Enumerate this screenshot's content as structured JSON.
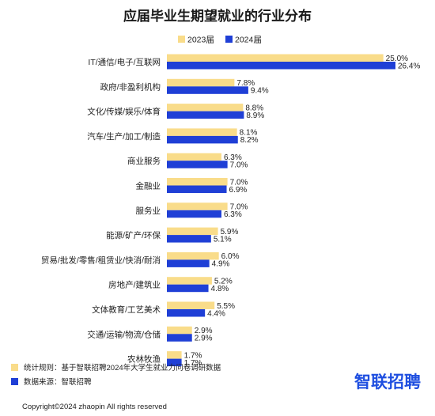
{
  "chart_data": {
    "type": "bar",
    "orientation": "horizontal",
    "title": "应届毕业生期望就业的行业分布",
    "categories": [
      "IT/通信/电子/互联网",
      "政府/非盈利机构",
      "文化/传媒/娱乐/体育",
      "汽车/生产/加工/制造",
      "商业服务",
      "金融业",
      "服务业",
      "能源/矿产/环保",
      "贸易/批发/零售/租赁业/快消/耐消",
      "房地产/建筑业",
      "文体教育/工艺美术",
      "交通/运输/物流/仓储",
      "农林牧渔"
    ],
    "series": [
      {
        "name": "2023届",
        "color": "#f9dc8a",
        "values": [
          25.0,
          7.8,
          8.8,
          8.1,
          6.3,
          7.0,
          7.0,
          5.9,
          6.0,
          5.2,
          5.5,
          2.9,
          1.7
        ],
        "labels": [
          "25.0%",
          "7.8%",
          "8.8%",
          "8.1%",
          "6.3%",
          "7.0%",
          "7.0%",
          "5.9%",
          "6.0%",
          "5.2%",
          "5.5%",
          "2.9%",
          "1.7%"
        ]
      },
      {
        "name": "2024届",
        "color": "#1f3fd6",
        "values": [
          26.4,
          9.4,
          8.9,
          8.2,
          7.0,
          6.9,
          6.3,
          5.1,
          4.9,
          4.8,
          4.4,
          2.9,
          1.7
        ],
        "labels": [
          "26.4%",
          "9.4%",
          "8.9%",
          "8.2%",
          "7.0%",
          "6.9%",
          "6.3%",
          "5.1%",
          "4.9%",
          "4.8%",
          "4.4%",
          "2.9%",
          "1.7%"
        ]
      }
    ],
    "legend_position": "top",
    "grid": false
  },
  "notes": [
    {
      "text": "统计规则：基于智联招聘2024年大学生就业力问卷调研数据",
      "color": "#f9dc8a"
    },
    {
      "text": "数据来源：智联招聘",
      "color": "#1f3fd6"
    }
  ],
  "brand": "智联招聘",
  "copyright": "Copyright©2024 zhaopin All rights reserved"
}
